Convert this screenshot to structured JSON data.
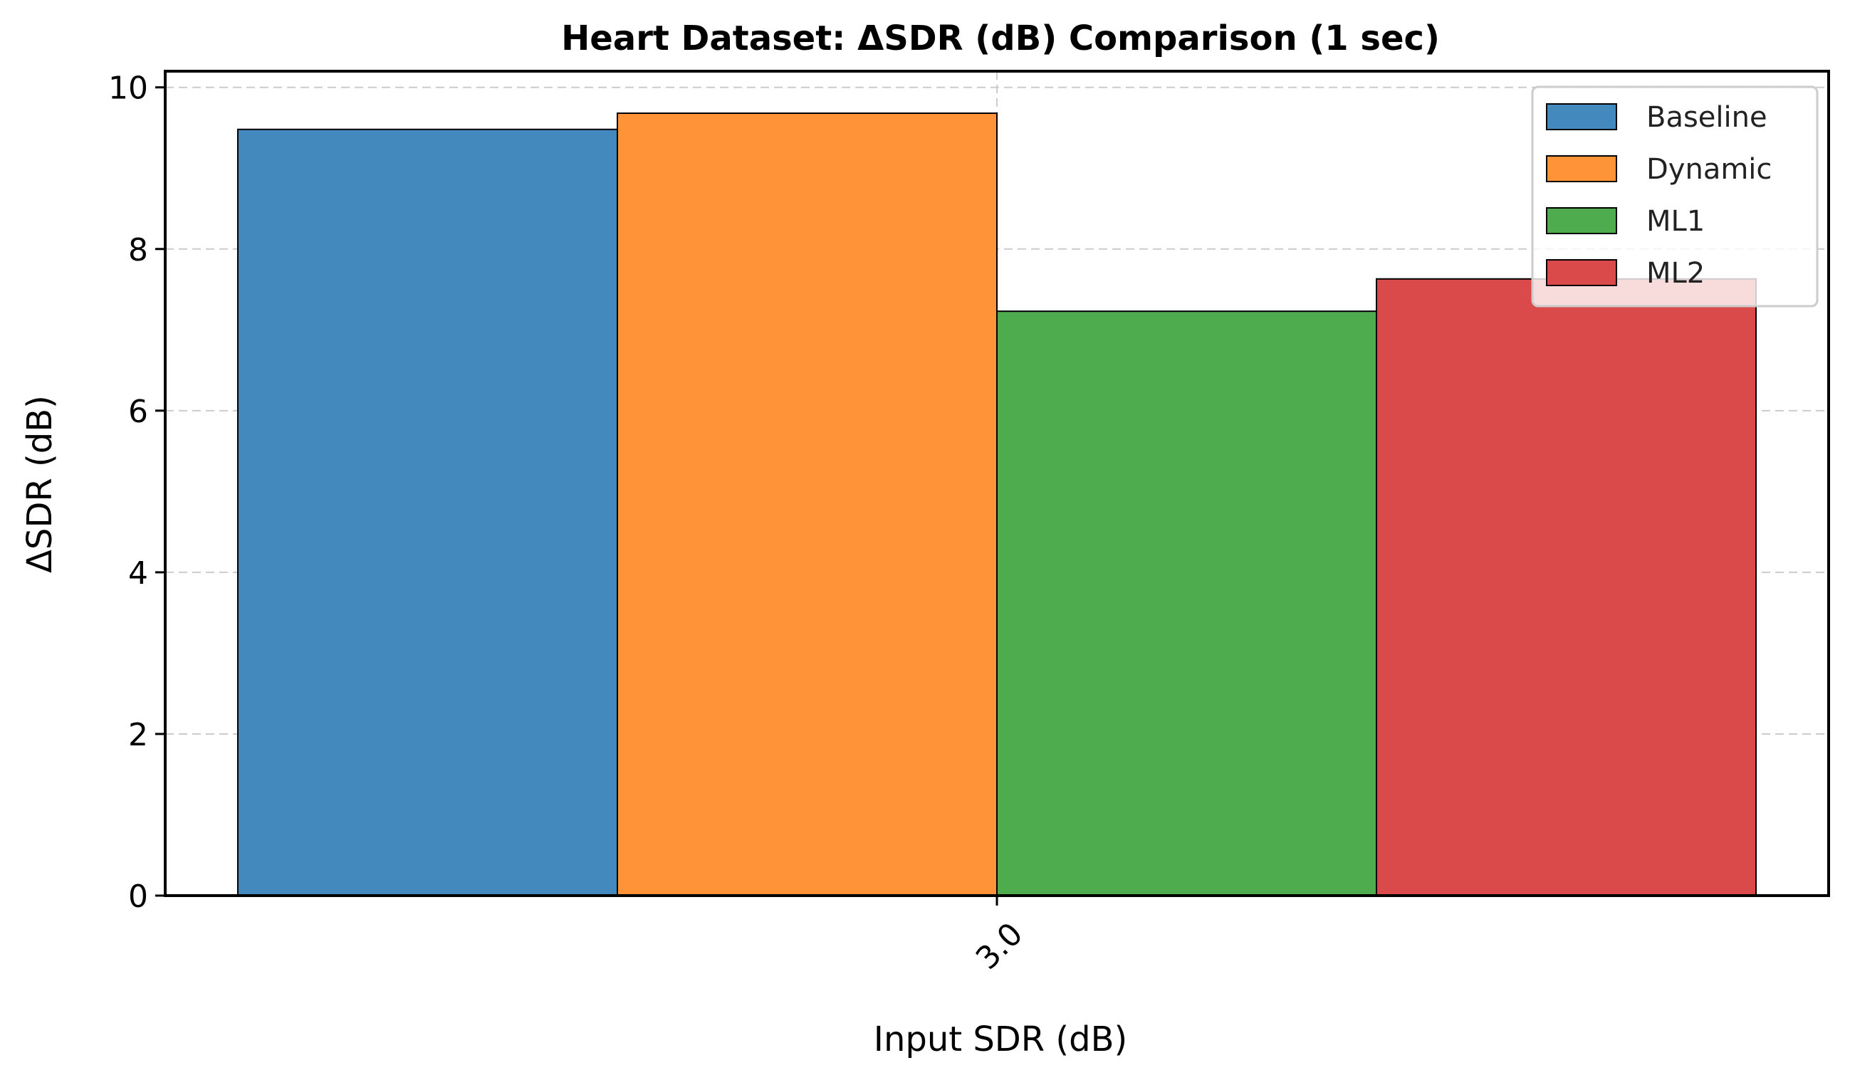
{
  "chart_data": {
    "type": "bar",
    "title": "Heart Dataset: ΔSDR (dB) Comparison (1 sec)",
    "xlabel": "Input SDR (dB)",
    "ylabel": "ΔSDR (dB)",
    "categories": [
      "3.0"
    ],
    "ylim": [
      0,
      10.2
    ],
    "yticks": [
      0,
      2,
      4,
      6,
      8,
      10
    ],
    "grid": true,
    "legend_position": "top-right",
    "series": [
      {
        "name": "Baseline",
        "color": "#4389be",
        "values": [
          9.48
        ]
      },
      {
        "name": "Dynamic",
        "color": "#fe9437",
        "values": [
          9.68
        ]
      },
      {
        "name": "ML1",
        "color": "#4eac4f",
        "values": [
          7.23
        ]
      },
      {
        "name": "ML2",
        "color": "#db4a4a",
        "values": [
          7.63
        ]
      }
    ]
  }
}
